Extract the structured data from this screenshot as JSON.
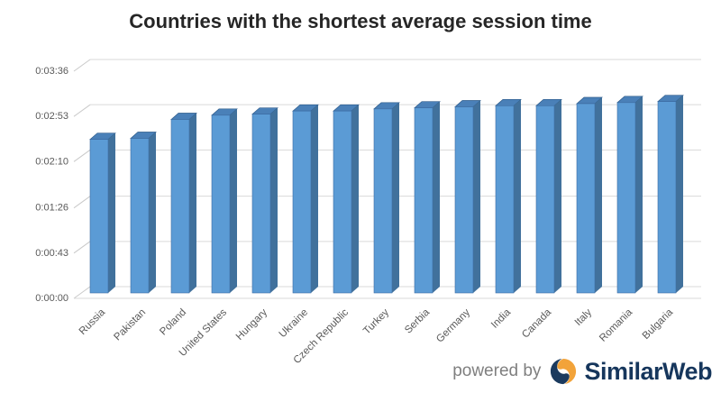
{
  "title": "Countries with the shortest average session time",
  "chart_data": {
    "type": "bar",
    "style": "3d-column",
    "title": "Countries with the shortest average session time",
    "categories": [
      "Russia",
      "Pakistan",
      "Poland",
      "United States",
      "Hungary",
      "Ukraine",
      "Czech Republic",
      "Turkey",
      "Serbia",
      "Germany",
      "India",
      "Canada",
      "Italy",
      "Romania",
      "Bulgaria"
    ],
    "values": [
      146,
      147,
      165,
      169,
      170,
      173,
      173,
      175,
      176,
      177,
      178,
      178,
      180,
      181,
      182
    ],
    "values_unit": "seconds",
    "xlabel": "",
    "ylabel": "",
    "y_ticks": [
      "0:00:00",
      "0:00:43",
      "0:01:26",
      "0:02:10",
      "0:02:53",
      "0:03:36"
    ],
    "y_tick_seconds": [
      0,
      43,
      86,
      130,
      173,
      216
    ],
    "ylim": [
      0,
      216
    ],
    "grid": true,
    "legend": false,
    "bar_color": "#5B9BD5",
    "bar_side_color": "#41719C",
    "bar_top_color": "#4A80B8",
    "bar_edge_color": "#2E5B8A",
    "gridline_color": "#D9D9D9",
    "side_tick_color": "#C9C9C9",
    "axis_label_color": "#595959",
    "title_color": "#262626"
  },
  "footer": {
    "powered_by_label": "powered by",
    "brand_name": "SimilarWeb",
    "logo_icon": "similarweb-swirl-icon",
    "brand_color": "#16365C",
    "powered_by_color": "#7F7F7F",
    "logo_orange": "#F2A33A",
    "logo_navy": "#1B3A5E"
  }
}
